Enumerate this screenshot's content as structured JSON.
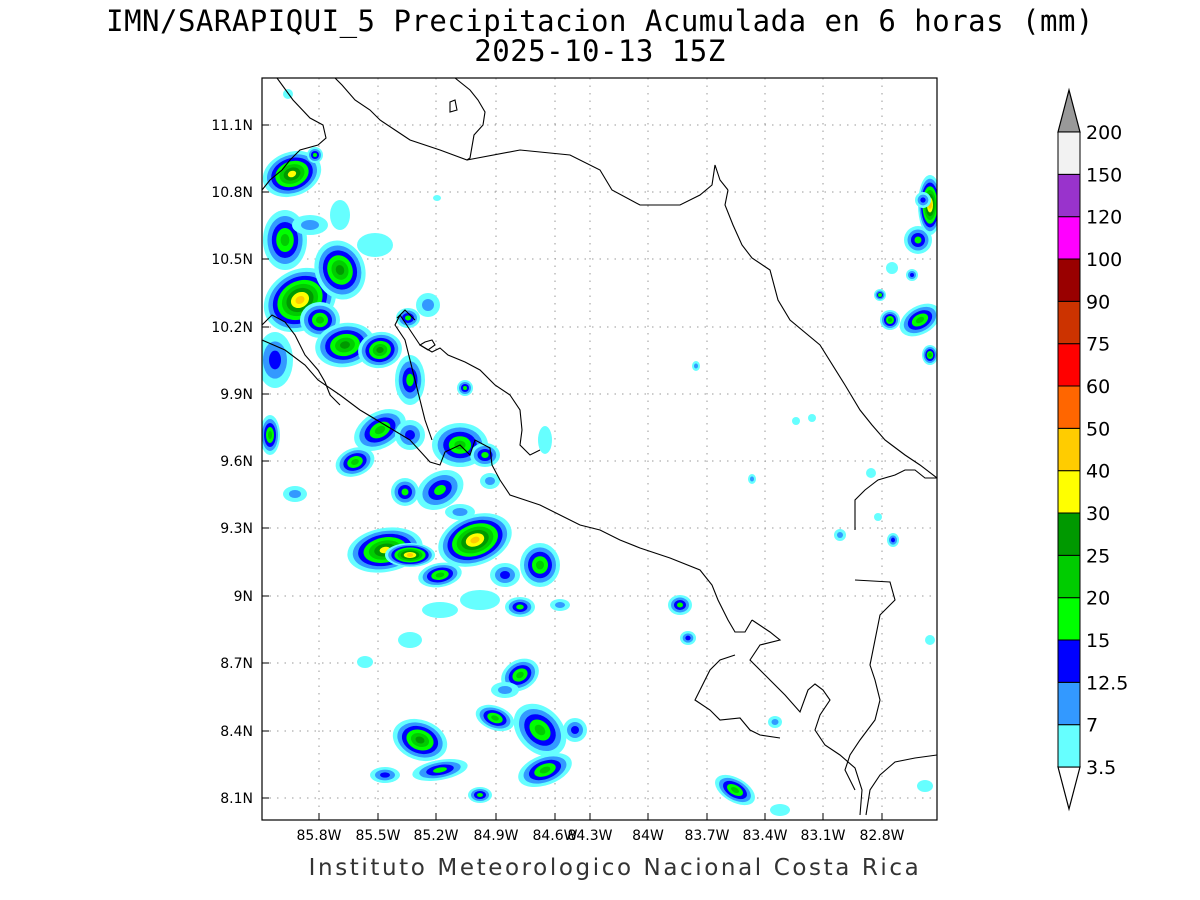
{
  "title_line1": "IMN/SARAPIQUI_5 Precipitacion Acumulada en 6 horas (mm)",
  "title_line2": "2025-10-13 15Z",
  "footer": "Instituto Meteorologico Nacional Costa Rica",
  "map": {
    "lon_range": [
      -86.05,
      -82.65
    ],
    "lat_range": [
      8.0,
      11.3
    ],
    "lon_ticks": [
      "85.8W",
      "85.5W",
      "85.2W",
      "84.9W",
      "84.6W",
      "84.3W",
      "84W",
      "83.7W",
      "83.4W",
      "83.1W",
      "82.8W"
    ],
    "lat_ticks": [
      "11.1N",
      "10.8N",
      "10.5N",
      "10.2N",
      "9.9N",
      "9.6N",
      "9.3N",
      "9N",
      "8.7N",
      "8.4N",
      "8.1N"
    ],
    "grid": true
  },
  "colorbar": {
    "labels": [
      "3.5",
      "7",
      "12.5",
      "15",
      "20",
      "25",
      "30",
      "40",
      "50",
      "60",
      "75",
      "90",
      "100",
      "120",
      "150",
      "200"
    ],
    "colors": [
      "#ffffff",
      "#66ffff",
      "#3399ff",
      "#0000ff",
      "#00ff00",
      "#00cc00",
      "#009900",
      "#ffff00",
      "#ffcc00",
      "#ff6600",
      "#ff0000",
      "#cc3300",
      "#990000",
      "#ff00ff",
      "#9933cc",
      "#f2f2f2",
      "#999999"
    ]
  }
}
